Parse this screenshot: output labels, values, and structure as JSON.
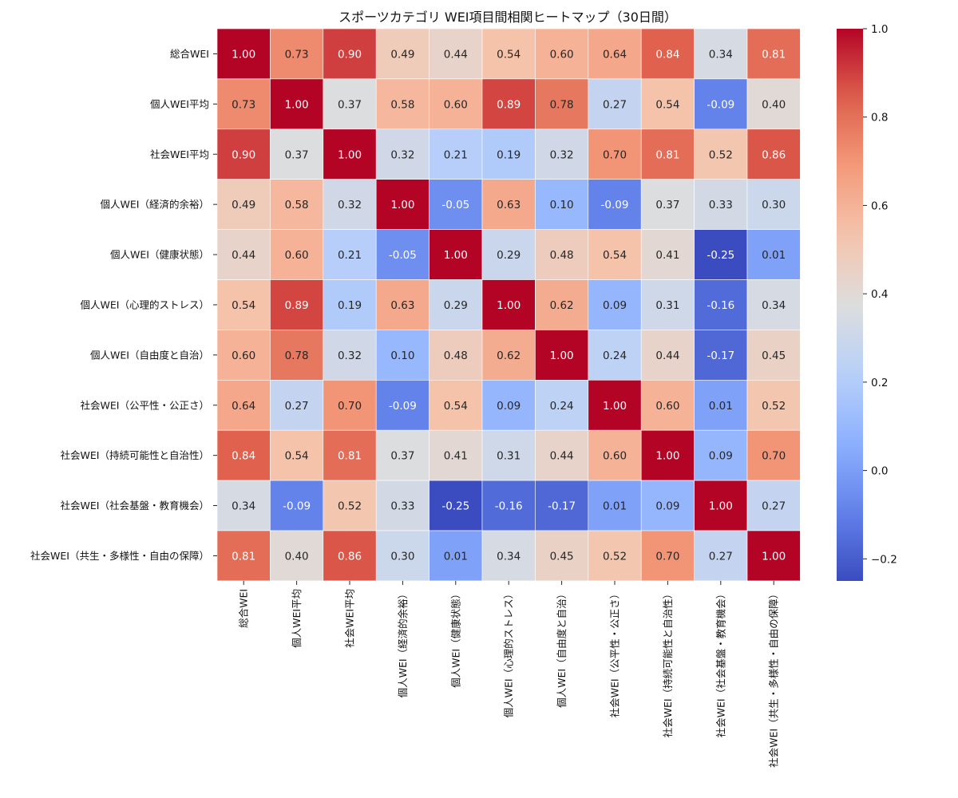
{
  "chart_data": {
    "type": "heatmap",
    "title": "スポーツカテゴリ WEI項目間相関ヒートマップ（30日間）",
    "labels": [
      "総合WEI",
      "個人WEI平均",
      "社会WEI平均",
      "個人WEI（経済的余裕）",
      "個人WEI（健康状態）",
      "個人WEI（心理的ストレス）",
      "個人WEI（自由度と自治）",
      "社会WEI（公平性・公正さ）",
      "社会WEI（持続可能性と自治性）",
      "社会WEI（社会基盤・教育機会）",
      "社会WEI（共生・多様性・自由の保障）"
    ],
    "matrix": [
      [
        1.0,
        0.73,
        0.9,
        0.49,
        0.44,
        0.54,
        0.6,
        0.64,
        0.84,
        0.34,
        0.81
      ],
      [
        0.73,
        1.0,
        0.37,
        0.58,
        0.6,
        0.89,
        0.78,
        0.27,
        0.54,
        -0.09,
        0.4
      ],
      [
        0.9,
        0.37,
        1.0,
        0.32,
        0.21,
        0.19,
        0.32,
        0.7,
        0.81,
        0.52,
        0.86
      ],
      [
        0.49,
        0.58,
        0.32,
        1.0,
        -0.05,
        0.63,
        0.1,
        -0.09,
        0.37,
        0.33,
        0.3
      ],
      [
        0.44,
        0.6,
        0.21,
        -0.05,
        1.0,
        0.29,
        0.48,
        0.54,
        0.41,
        -0.25,
        0.01
      ],
      [
        0.54,
        0.89,
        0.19,
        0.63,
        0.29,
        1.0,
        0.62,
        0.09,
        0.31,
        -0.16,
        0.34
      ],
      [
        0.6,
        0.78,
        0.32,
        0.1,
        0.48,
        0.62,
        1.0,
        0.24,
        0.44,
        -0.17,
        0.45
      ],
      [
        0.64,
        0.27,
        0.7,
        -0.09,
        0.54,
        0.09,
        0.24,
        1.0,
        0.6,
        0.01,
        0.52
      ],
      [
        0.84,
        0.54,
        0.81,
        0.37,
        0.41,
        0.31,
        0.44,
        0.6,
        1.0,
        0.09,
        0.7
      ],
      [
        0.34,
        -0.09,
        0.52,
        0.33,
        -0.25,
        -0.16,
        -0.17,
        0.01,
        0.09,
        1.0,
        0.27
      ],
      [
        0.81,
        0.4,
        0.86,
        0.3,
        0.01,
        0.34,
        0.45,
        0.52,
        0.7,
        0.27,
        1.0
      ]
    ],
    "colormap": "coolwarm",
    "vmin": -0.25,
    "vmax": 1.0,
    "colorbar_ticks": [
      1.0,
      0.8,
      0.6,
      0.4,
      0.2,
      0.0,
      -0.2
    ],
    "colorbar_tick_labels": [
      "1.0",
      "0.8",
      "0.6",
      "0.4",
      "0.2",
      "0.0",
      "−0.2"
    ],
    "annotation_format": "2 decimals"
  }
}
